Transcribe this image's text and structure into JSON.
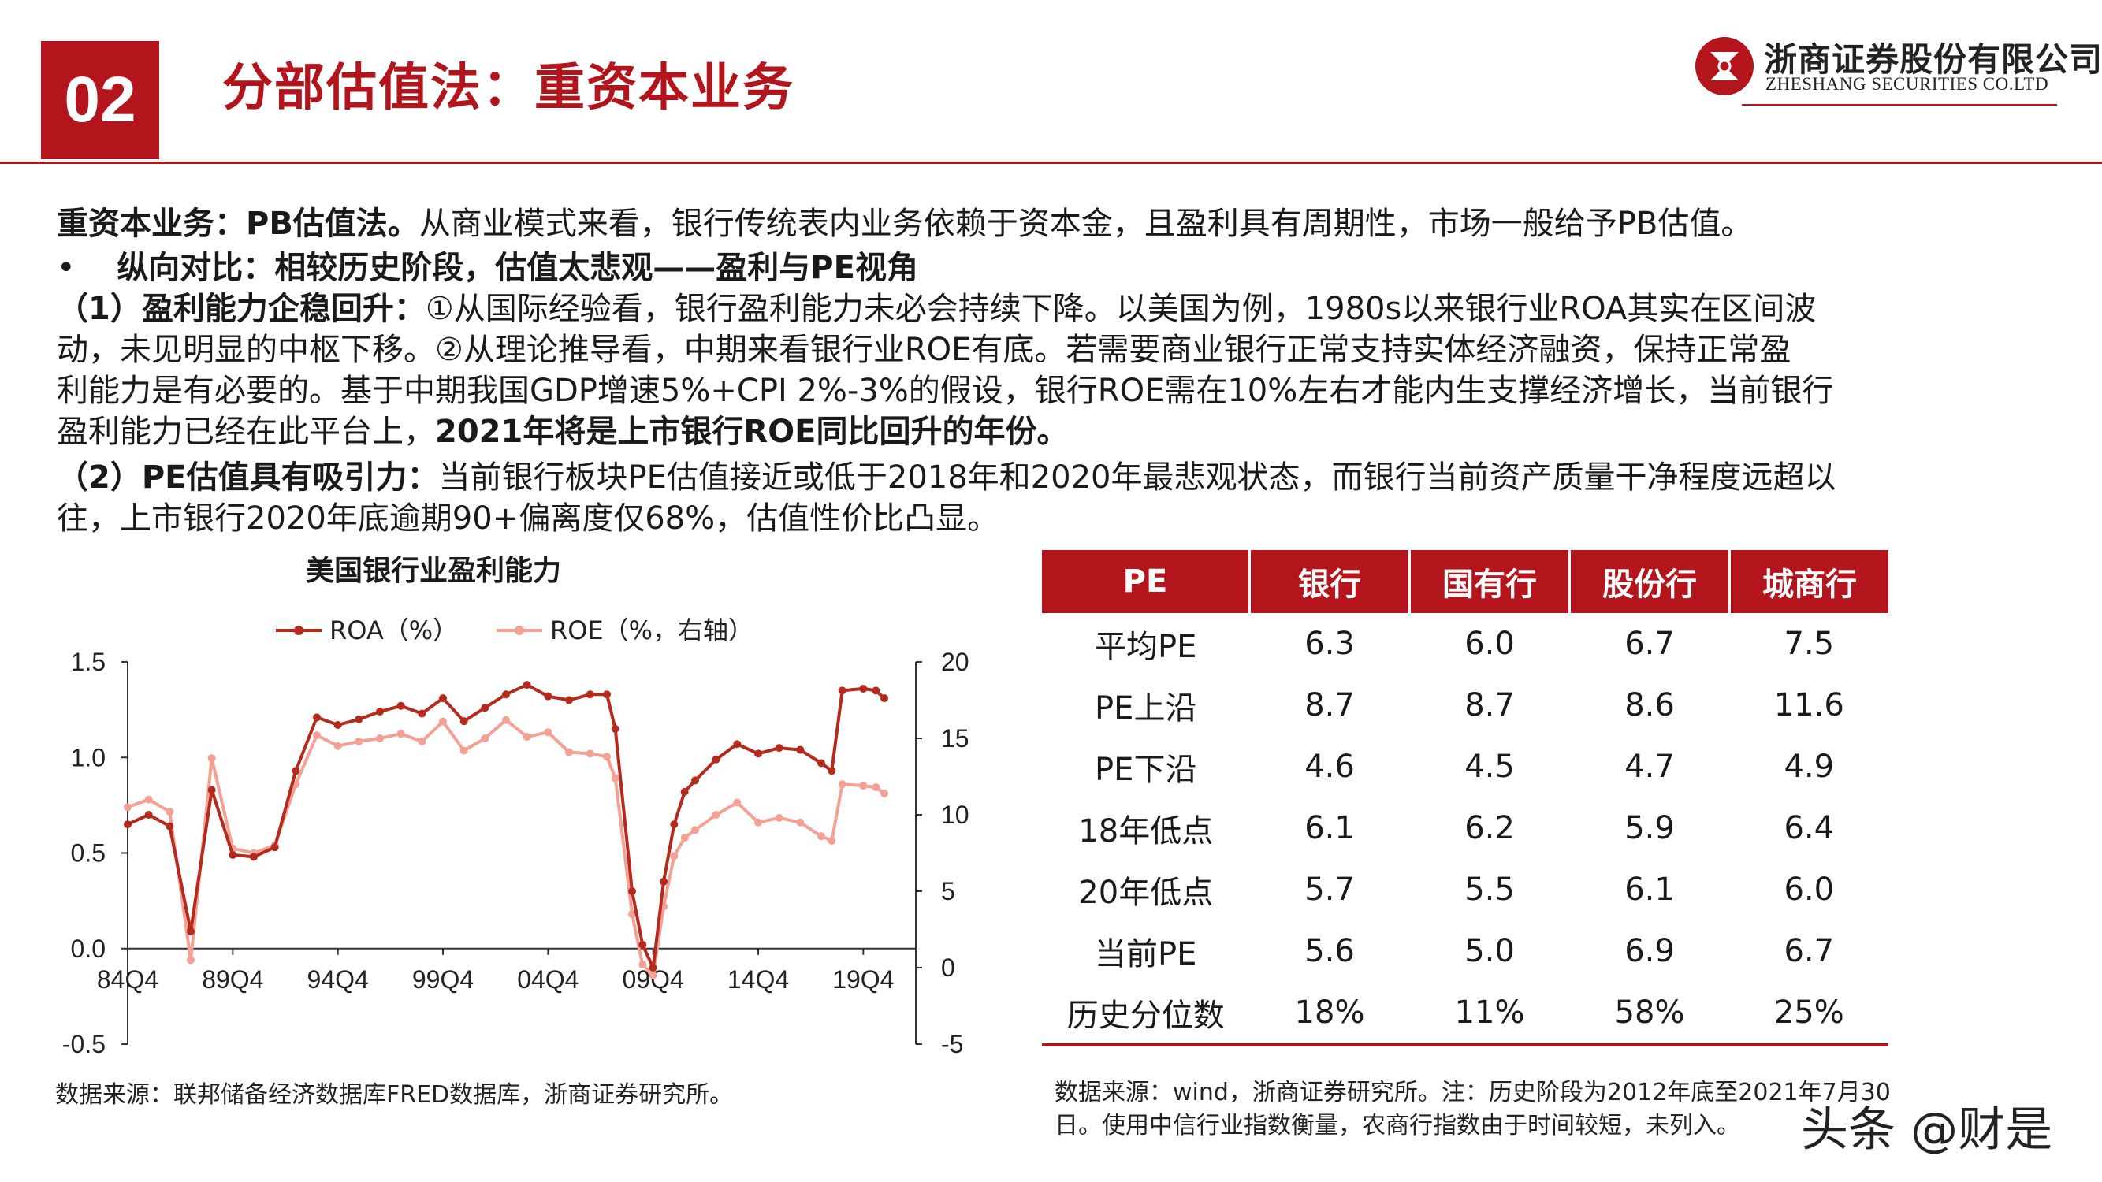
{
  "header": {
    "section_number": "02",
    "title": "分部估值法：重资本业务",
    "logo_cn": "浙商证券股份有限公司",
    "logo_en": "ZHESHANG SECURITIES CO.LTD"
  },
  "body": {
    "line1_bold": "重资本业务：PB估值法。",
    "line1_rest": "从商业模式来看，银行传统表内业务依赖于资本金，且盈利具有周期性，市场一般给予PB估值。",
    "bullet_mark": "•",
    "bullet_text": "纵向对比：相较历史阶段，估值太悲观——盈利与PE视角",
    "p1_bold": "（1）盈利能力企稳回升：",
    "p1_line1": "①从国际经验看，银行盈利能力未必会持续下降。以美国为例，1980s以来银行业ROA其实在区间波",
    "p1_line2": "动，未见明显的中枢下移。②从理论推导看，中期来看银行业ROE有底。若需要商业银行正常支持实体经济融资，保持正常盈",
    "p1_line3": "利能力是有必要的。基于中期我国GDP增速5%+CPI 2%-3%的假设，银行ROE需在10%左右才能内生支撑经济增长，当前银行",
    "p1_line4_rest": "盈利能力已经在此平台上，",
    "p1_line4_bold": "2021年将是上市银行ROE同比回升的年份。",
    "p2_bold": "（2）PE估值具有吸引力：",
    "p2_line1": "当前银行板块PE估值接近或低于2018年和2020年最悲观状态，而银行当前资产质量干净程度远超以",
    "p2_line2": "往，上市银行2020年底逾期90+偏离度仅68%，估值性价比凸显。"
  },
  "chart_data": {
    "type": "line",
    "title": "美国银行业盈利能力",
    "x_tick_labels": [
      "84Q4",
      "89Q4",
      "94Q4",
      "99Q4",
      "04Q4",
      "09Q4",
      "14Q4",
      "19Q4"
    ],
    "x_tick_years": [
      1984,
      1989,
      1994,
      1999,
      2004,
      2009,
      2014,
      2019
    ],
    "xlim": [
      1984,
      2021.5
    ],
    "left_axis": {
      "ticks": [
        "1.5",
        "1.0",
        "0.5",
        "0.0",
        "-0.5"
      ],
      "ylim": [
        -0.5,
        1.5
      ]
    },
    "right_axis": {
      "ticks": [
        "20",
        "15",
        "10",
        "5",
        "0",
        "-5"
      ],
      "ylim": [
        -5,
        20
      ]
    },
    "legend": {
      "placement": "top"
    },
    "series": [
      {
        "name": "ROA（%）",
        "axis": "left",
        "color": "#b52a1c",
        "x": [
          1984,
          1985,
          1986,
          1987,
          1988,
          1989,
          1990,
          1991,
          1992,
          1993,
          1994,
          1995,
          1996,
          1997,
          1998,
          1999,
          2000,
          2001,
          2002,
          2003,
          2004,
          2005,
          2006,
          2006.8,
          2007.2,
          2008,
          2008.5,
          2009,
          2009.5,
          2010,
          2010.5,
          2011,
          2012,
          2013,
          2014,
          2015,
          2016,
          2017,
          2017.5,
          2018,
          2019,
          2019.6,
          2020
        ],
        "y": [
          0.65,
          0.7,
          0.64,
          0.09,
          0.83,
          0.49,
          0.48,
          0.53,
          0.93,
          1.21,
          1.17,
          1.2,
          1.24,
          1.27,
          1.23,
          1.31,
          1.19,
          1.26,
          1.33,
          1.38,
          1.32,
          1.3,
          1.33,
          1.33,
          1.15,
          0.3,
          0.02,
          -0.1,
          0.35,
          0.65,
          0.82,
          0.88,
          0.99,
          1.07,
          1.02,
          1.05,
          1.04,
          0.97,
          0.93,
          1.35,
          1.36,
          1.35,
          1.31
        ]
      },
      {
        "name": "ROE（%，右轴）",
        "axis": "right",
        "color": "#f4a094",
        "x": [
          1984,
          1985,
          1986,
          1987,
          1988,
          1989,
          1990,
          1991,
          1992,
          1993,
          1994,
          1995,
          1996,
          1997,
          1998,
          1999,
          2000,
          2001,
          2002,
          2003,
          2004,
          2005,
          2006,
          2006.8,
          2007.2,
          2008,
          2008.5,
          2009,
          2009.5,
          2010,
          2010.5,
          2011,
          2012,
          2013,
          2014,
          2015,
          2016,
          2017,
          2017.5,
          2018,
          2019,
          2019.6,
          2020
        ],
        "y": [
          10.5,
          11,
          10.2,
          0.5,
          13.7,
          7.8,
          7.5,
          8,
          12,
          15.2,
          14.5,
          14.8,
          15,
          15.3,
          14.8,
          16.1,
          14.2,
          15,
          16.2,
          15.1,
          15.4,
          14.1,
          14,
          13.8,
          12.4,
          3.5,
          0.2,
          -0.5,
          4,
          7.3,
          8.5,
          9,
          10,
          10.8,
          9.5,
          9.8,
          9.5,
          8.6,
          8.3,
          12,
          11.9,
          11.8,
          11.4
        ]
      }
    ]
  },
  "chart_source": "数据来源：联邦储备经济数据库FRED数据库，浙商证券研究所。",
  "pe_table": {
    "headers": [
      "PE",
      "银行",
      "国有行",
      "股份行",
      "城商行"
    ],
    "rows": [
      [
        "平均PE",
        "6.3",
        "6.0",
        "6.7",
        "7.5"
      ],
      [
        "PE上沿",
        "8.7",
        "8.7",
        "8.6",
        "11.6"
      ],
      [
        "PE下沿",
        "4.6",
        "4.5",
        "4.7",
        "4.9"
      ],
      [
        "18年低点",
        "6.1",
        "6.2",
        "5.9",
        "6.4"
      ],
      [
        "20年低点",
        "5.7",
        "5.5",
        "6.1",
        "6.0"
      ],
      [
        "当前PE",
        "5.6",
        "5.0",
        "6.9",
        "6.7"
      ],
      [
        "历史分位数",
        "18%",
        "11%",
        "58%",
        "25%"
      ]
    ]
  },
  "table_source_line1": "数据来源：wind，浙商证券研究所。注：历史阶段为2012年底至2021年7月30",
  "table_source_line2": "日。使用中信行业指数衡量，农商行指数由于时间较短，未列入。",
  "watermark": "头条 @财是",
  "colors": {
    "brand_red": "#b4141b",
    "roa_line": "#b52a1c",
    "roe_line": "#f4a094"
  }
}
